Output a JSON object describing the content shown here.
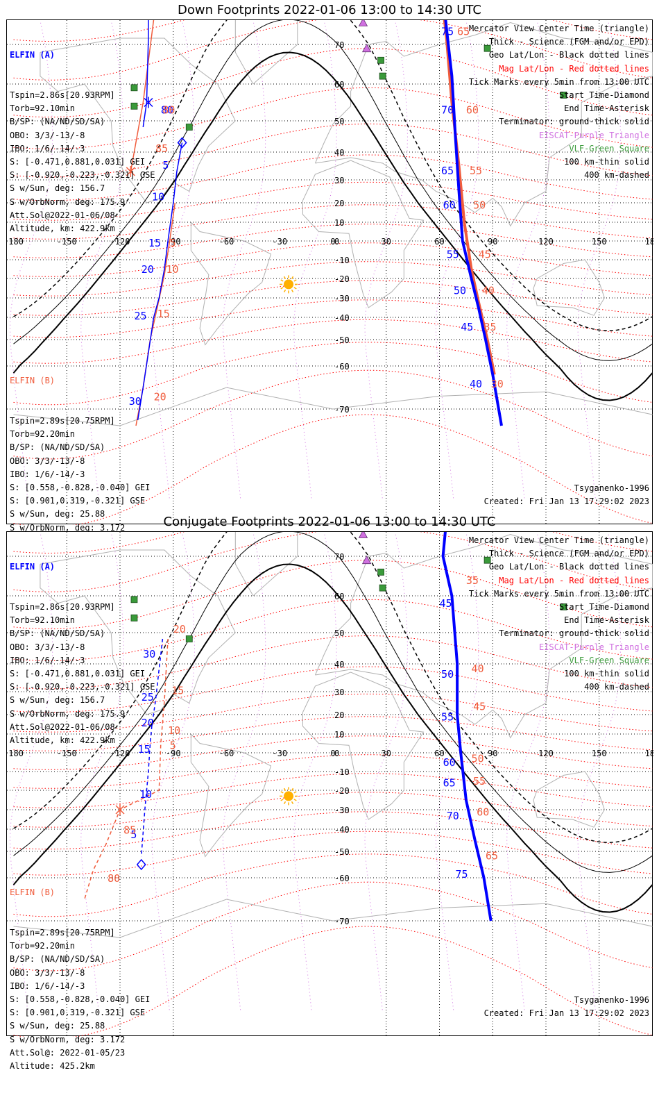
{
  "panels": [
    {
      "title": "Down Footprints 2022-01-06 13:00 to 14:30 UTC",
      "elfin_a": {
        "name": "ELFIN (A)",
        "lines": [
          "Tspin=2.86s[20.93RPM]",
          "Torb=92.10min",
          "B/SP: (NA/ND/SD/SA)",
          "OBO: 3/3/-13/-8",
          "IBO: 1/6/-14/-3",
          "S: [-0.471,0.881,0.031] GEI",
          "S: [-0.920,-0.223,-0.321] GSE",
          "S w/Sun, deg: 156.7",
          "S w/OrbNorm, deg: 175.9",
          "Att.Sol@2022-01-06/08",
          "Altitude, km: 422.9km"
        ]
      },
      "elfin_b": {
        "name": "ELFIN (B)",
        "lines": [
          "Tspin=2.89s[20.75RPM]",
          "Torb=92.20min",
          "B/SP: (NA/ND/SD/SA)",
          "OBO: 3/3/-13/-8",
          "IBO: 1/6/-14/-3",
          "S: [0.558,-0.828,-0.040] GEI",
          "S: [0.901,0.319,-0.321] GSE",
          "S w/Sun, deg: 25.88",
          "S w/OrbNorm, deg: 3.172",
          "Att.Sol@: 2022-01-05/23",
          "Altitude: 425.2km"
        ]
      },
      "legend": [
        {
          "text": "Mercator View Center Time (triangle)",
          "color": "#000000"
        },
        {
          "text": "Thick - Science (FGM and/or EPD)",
          "color": "#000000"
        },
        {
          "text": "Geo Lat/Lon - Black dotted lines",
          "color": "#000000"
        },
        {
          "text": "Mag Lat/Lon - Red dotted lines",
          "color": "#ff0000"
        },
        {
          "text": "Tick Marks every 5min from 13:00 UTC",
          "color": "#000000"
        },
        {
          "text": "Start Time-Diamond",
          "color": "#000000"
        },
        {
          "text": "End Time-Asterisk",
          "color": "#000000"
        },
        {
          "text": "Terminator: ground-thick solid",
          "color": "#000000"
        },
        {
          "text": "EISCAT-Purple Triangle",
          "color": "#d070e0"
        },
        {
          "text": "VLF-Green Square",
          "color": "#3a9a3a"
        },
        {
          "text": "100 km-thin solid",
          "color": "#000000"
        },
        {
          "text": "400 km-dashed",
          "color": "#000000"
        }
      ],
      "model": "Tsyganenko-1996",
      "created": "Created: Fri Jan 13 17:29:02 2023"
    },
    {
      "title": "Conjugate Footprints 2022-01-06 13:00 to 14:30 UTC",
      "elfin_a": {
        "name": "ELFIN (A)",
        "lines": [
          "Tspin=2.86s[20.93RPM]",
          "Torb=92.10min",
          "B/SP: (NA/ND/SD/SA)",
          "OBO: 3/3/-13/-8",
          "IBO: 1/6/-14/-3",
          "S: [-0.471,0.881,0.031] GEI",
          "S: [-0.920,-0.223,-0.321] GSE",
          "S w/Sun, deg: 156.7",
          "S w/OrbNorm, deg: 175.9",
          "Att.Sol@2022-01-06/08",
          "Altitude, km: 422.9km"
        ]
      },
      "elfin_b": {
        "name": "ELFIN (B)",
        "lines": [
          "Tspin=2.89s[20.75RPM]",
          "Torb=92.20min",
          "B/SP: (NA/ND/SD/SA)",
          "OBO: 3/3/-13/-8",
          "IBO: 1/6/-14/-3",
          "S: [0.558,-0.828,-0.040] GEI",
          "S: [0.901,0.319,-0.321] GSE",
          "S w/Sun, deg: 25.88",
          "S w/OrbNorm, deg: 3.172",
          "Att.Sol@: 2022-01-05/23",
          "Altitude: 425.2km"
        ]
      },
      "legend": [
        {
          "text": "Mercator View Center Time (triangle)",
          "color": "#000000"
        },
        {
          "text": "Thick - Science (FGM and/or EPD)",
          "color": "#000000"
        },
        {
          "text": "Geo Lat/Lon - Black dotted lines",
          "color": "#000000"
        },
        {
          "text": "Mag Lat/Lon - Red dotted lines",
          "color": "#ff0000"
        },
        {
          "text": "Tick Marks every 5min from 13:00 UTC",
          "color": "#000000"
        },
        {
          "text": "Start Time-Diamond",
          "color": "#000000"
        },
        {
          "text": "End Time-Asterisk",
          "color": "#000000"
        },
        {
          "text": "Terminator: ground-thick solid",
          "color": "#000000"
        },
        {
          "text": "EISCAT-Purple Triangle",
          "color": "#d070e0"
        },
        {
          "text": "VLF-Green Square",
          "color": "#3a9a3a"
        },
        {
          "text": "100 km-thin solid",
          "color": "#000000"
        },
        {
          "text": "400 km-dashed",
          "color": "#000000"
        }
      ],
      "model": "Tsyganenko-1996",
      "created": "Created: Fri Jan 13 17:29:02 2023"
    }
  ],
  "colors": {
    "elfin_a": "#0000ff",
    "elfin_b": "#f05c3c",
    "mag_grid": "#ff0000",
    "geo_grid": "#000000",
    "eiscat": "#d070e0",
    "vlf": "#3a9a3a",
    "sun": "#ffb000",
    "coast": "#b0b0b0"
  },
  "map": {
    "lon_ticks": [
      "-180",
      "-150",
      "-120",
      "-90",
      "-60",
      "-30",
      "0",
      "30",
      "60",
      "90",
      "120",
      "150",
      "180"
    ],
    "lat_ticks_top": [
      "70",
      "60",
      "50",
      "40",
      "30",
      "20",
      "10",
      "0",
      "-10",
      "-20",
      "-30",
      "-40",
      "-50",
      "-60",
      "-70"
    ],
    "eiscat_sites": [
      {
        "lon": 17,
        "lat": 77
      },
      {
        "lon": 19,
        "lat": 69
      }
    ],
    "vlf_sites": [
      {
        "lon": 27,
        "lat": 66
      },
      {
        "lon": 28,
        "lat": 62
      },
      {
        "lon": 87,
        "lat": 69
      },
      {
        "lon": -112,
        "lat": 59
      },
      {
        "lon": -112,
        "lat": 54
      },
      {
        "lon": -81,
        "lat": 48
      },
      {
        "lon": 130,
        "lat": 57
      }
    ],
    "sun_position": {
      "lon": -25,
      "lat": -23
    }
  },
  "tracks": {
    "down": {
      "a_west": {
        "points": [
          [
            -100,
            90
          ],
          [
            -104,
            80
          ],
          [
            -104,
            72
          ],
          [
            -105,
            55
          ],
          [
            -107,
            48
          ]
        ],
        "labels": [
          {
            "text": "85",
            "lon": -107,
            "lat": 78
          },
          {
            "text": "80",
            "lon": -97,
            "lat": 52
          }
        ]
      },
      "b_west": {
        "points": [
          [
            -97,
            90
          ],
          [
            -101,
            78
          ],
          [
            -107,
            55
          ],
          [
            -114,
            33
          ]
        ],
        "labels": [
          {
            "text": "75",
            "lon": -93,
            "lat": 78
          },
          {
            "text": "80",
            "lon": -96,
            "lat": 52
          },
          {
            "text": "85",
            "lon": -100,
            "lat": 40
          }
        ]
      },
      "a_main": {
        "points": [
          [
            -85,
            43
          ],
          [
            -88,
            33
          ],
          [
            -90,
            20
          ],
          [
            -93,
            0
          ],
          [
            -95,
            -15
          ],
          [
            -98,
            -30
          ],
          [
            -101,
            -40
          ],
          [
            -104,
            -55
          ],
          [
            -107,
            -65
          ],
          [
            -110,
            -72
          ]
        ],
        "ticks": [
          {
            "text": "5",
            "lon": -96,
            "lat": 34
          },
          {
            "text": "10",
            "lon": -102,
            "lat": 21
          },
          {
            "text": "15",
            "lon": -104,
            "lat": -3
          },
          {
            "text": "20",
            "lon": -108,
            "lat": -17
          },
          {
            "text": "25",
            "lon": -112,
            "lat": -41
          },
          {
            "text": "30",
            "lon": -115,
            "lat": -69
          }
        ]
      },
      "b_main": {
        "points": [
          [
            -89,
            20
          ],
          [
            -92,
            0
          ],
          [
            -95,
            -18
          ],
          [
            -99,
            -35
          ],
          [
            -103,
            -50
          ],
          [
            -107,
            -65
          ],
          [
            -111,
            -73
          ]
        ],
        "ticks": [
          {
            "text": "5",
            "lon": -92,
            "lat": -3
          },
          {
            "text": "10",
            "lon": -94,
            "lat": -17
          },
          {
            "text": "15",
            "lon": -99,
            "lat": -40
          },
          {
            "text": "20",
            "lon": -101,
            "lat": -68
          }
        ]
      },
      "a_east": {
        "points": [
          [
            62,
            90
          ],
          [
            64,
            75
          ],
          [
            67,
            62
          ],
          [
            69,
            45
          ],
          [
            71,
            25
          ],
          [
            73,
            0
          ],
          [
            78,
            -20
          ],
          [
            82,
            -35
          ],
          [
            86,
            -50
          ],
          [
            90,
            -62
          ],
          [
            95,
            -73
          ]
        ],
        "ticks": [
          {
            "text": "75",
            "lon": 61,
            "lat": 73
          },
          {
            "text": "70",
            "lon": 61,
            "lat": 52
          },
          {
            "text": "65",
            "lon": 61,
            "lat": 32
          },
          {
            "text": "60",
            "lon": 62,
            "lat": 17
          },
          {
            "text": "55",
            "lon": 64,
            "lat": -9
          },
          {
            "text": "50",
            "lon": 68,
            "lat": -28
          },
          {
            "text": "45",
            "lon": 72,
            "lat": -46
          },
          {
            "text": "40",
            "lon": 77,
            "lat": -65
          }
        ]
      },
      "b_east": {
        "points": [
          [
            61,
            90
          ],
          [
            64,
            72
          ],
          [
            67,
            55
          ],
          [
            71,
            35
          ],
          [
            74,
            10
          ],
          [
            78,
            -15
          ],
          [
            82,
            -32
          ],
          [
            87,
            -50
          ],
          [
            91,
            -62
          ]
        ],
        "ticks": [
          {
            "text": "65",
            "lon": 70,
            "lat": 73
          },
          {
            "text": "60",
            "lon": 75,
            "lat": 52
          },
          {
            "text": "55",
            "lon": 77,
            "lat": 32
          },
          {
            "text": "50",
            "lon": 79,
            "lat": 17
          },
          {
            "text": "45",
            "lon": 82,
            "lat": -9
          },
          {
            "text": "40",
            "lon": 84,
            "lat": -28
          },
          {
            "text": "35",
            "lon": 85,
            "lat": -46
          },
          {
            "text": "30",
            "lon": 89,
            "lat": -65
          }
        ]
      }
    },
    "conjugate": {
      "a_west": {
        "points": [
          [
            -96,
            48
          ],
          [
            -98,
            38
          ],
          [
            -100,
            26
          ],
          [
            -102,
            15
          ],
          [
            -103,
            5
          ],
          [
            -104,
            -10
          ],
          [
            -106,
            -30
          ],
          [
            -108,
            -52
          ]
        ],
        "ticks": [
          {
            "text": "30",
            "lon": -107,
            "lat": 42
          },
          {
            "text": "25",
            "lon": -108,
            "lat": 26
          },
          {
            "text": "20",
            "lon": -108,
            "lat": 14
          },
          {
            "text": "15",
            "lon": -110,
            "lat": 0
          },
          {
            "text": "10",
            "lon": -109,
            "lat": -24
          },
          {
            "text": "5",
            "lon": -114,
            "lat": -44
          }
        ]
      },
      "b_west": {
        "points": [
          [
            -93,
            48
          ],
          [
            -95,
            26
          ],
          [
            -97,
            5
          ],
          [
            -98,
            -20
          ],
          [
            -120,
            -30
          ],
          [
            -128,
            -47
          ],
          [
            -135,
            -57
          ],
          [
            -140,
            -65
          ]
        ],
        "ticks": [
          {
            "text": "20",
            "lon": -90,
            "lat": 50
          },
          {
            "text": "15",
            "lon": -91,
            "lat": 29
          },
          {
            "text": "10",
            "lon": -93,
            "lat": 10
          },
          {
            "text": "5",
            "lon": -92,
            "lat": 2
          },
          {
            "text": "85",
            "lon": -118,
            "lat": -42
          },
          {
            "text": "80",
            "lon": -127,
            "lat": -61
          }
        ]
      },
      "a_east": {
        "points": [
          [
            64,
            83
          ],
          [
            62,
            70
          ],
          [
            67,
            60
          ],
          [
            70,
            40
          ],
          [
            70,
            20
          ],
          [
            72,
            0
          ],
          [
            75,
            -25
          ],
          [
            80,
            -45
          ],
          [
            85,
            -60
          ],
          [
            89,
            -70
          ]
        ],
        "ticks": [
          {
            "text": "45",
            "lon": 60,
            "lat": 57
          },
          {
            "text": "50",
            "lon": 61,
            "lat": 35
          },
          {
            "text": "55",
            "lon": 61,
            "lat": 17
          },
          {
            "text": "60",
            "lon": 62,
            "lat": -7
          },
          {
            "text": "65",
            "lon": 62,
            "lat": -18
          },
          {
            "text": "70",
            "lon": 64,
            "lat": -35
          },
          {
            "text": "75",
            "lon": 69,
            "lat": -60
          }
        ]
      },
      "b_east": {
        "ticks": [
          {
            "text": "35",
            "lon": 75,
            "lat": 63
          },
          {
            "text": "40",
            "lon": 78,
            "lat": 37
          },
          {
            "text": "45",
            "lon": 79,
            "lat": 22
          },
          {
            "text": "50",
            "lon": 78,
            "lat": -5
          },
          {
            "text": "55",
            "lon": 79,
            "lat": -17
          },
          {
            "text": "60",
            "lon": 81,
            "lat": -33
          },
          {
            "text": "65",
            "lon": 86,
            "lat": -53
          }
        ]
      }
    }
  }
}
